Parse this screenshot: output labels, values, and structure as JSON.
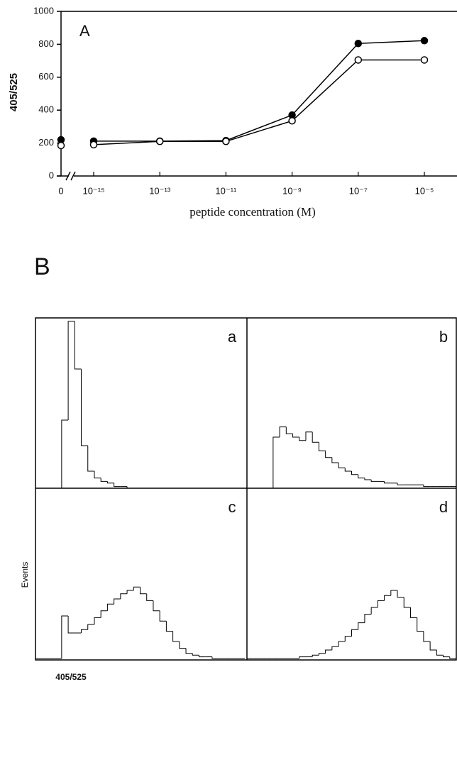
{
  "chart_data": [
    {
      "type": "line",
      "annotation": "A",
      "ylabel": "405/525",
      "xlabel": "peptide concentration (M)",
      "categories": [
        "0",
        "10⁻¹⁵",
        "10⁻¹³",
        "10⁻¹¹",
        "10⁻⁹",
        "10⁻⁷",
        "10⁻⁵"
      ],
      "series": [
        {
          "color": "#000000",
          "fill": "#000000",
          "values": [
            220,
            212,
            212,
            215,
            370,
            805,
            822
          ]
        },
        {
          "color": "#000000",
          "fill": "#ffffff",
          "values": [
            185,
            190,
            210,
            210,
            335,
            705,
            705
          ]
        }
      ],
      "ylim": [
        0,
        1000
      ],
      "yticks": [
        0,
        200,
        400,
        600,
        800,
        1000
      ]
    },
    {
      "type": "histogram",
      "title": "B",
      "ylabel": "Events",
      "xlabel": "405/525",
      "ylim": [
        0,
        100
      ],
      "panels": [
        {
          "label": "a",
          "values": [
            0,
            0,
            0,
            0,
            40,
            98,
            70,
            25,
            10,
            6,
            4,
            3,
            1,
            1,
            0,
            0,
            0,
            0,
            0,
            0,
            0,
            0,
            0,
            0,
            0,
            0,
            0,
            0,
            0,
            0,
            0,
            0
          ]
        },
        {
          "label": "b",
          "values": [
            0,
            0,
            0,
            0,
            30,
            36,
            32,
            30,
            28,
            33,
            27,
            22,
            18,
            15,
            12,
            10,
            8,
            6,
            5,
            4,
            4,
            3,
            3,
            2,
            2,
            2,
            2,
            1,
            1,
            1,
            1,
            1
          ]
        },
        {
          "label": "c",
          "values": [
            0,
            0,
            0,
            0,
            25,
            15,
            15,
            17,
            20,
            24,
            28,
            32,
            35,
            38,
            40,
            42,
            38,
            34,
            28,
            22,
            16,
            10,
            6,
            3,
            2,
            1,
            1,
            0,
            0,
            0,
            0,
            0
          ]
        },
        {
          "label": "d",
          "values": [
            0,
            0,
            0,
            0,
            0,
            0,
            0,
            0,
            1,
            1,
            2,
            3,
            5,
            7,
            10,
            13,
            17,
            21,
            26,
            30,
            34,
            37,
            40,
            36,
            30,
            24,
            16,
            10,
            5,
            2,
            1,
            0
          ]
        }
      ]
    }
  ]
}
